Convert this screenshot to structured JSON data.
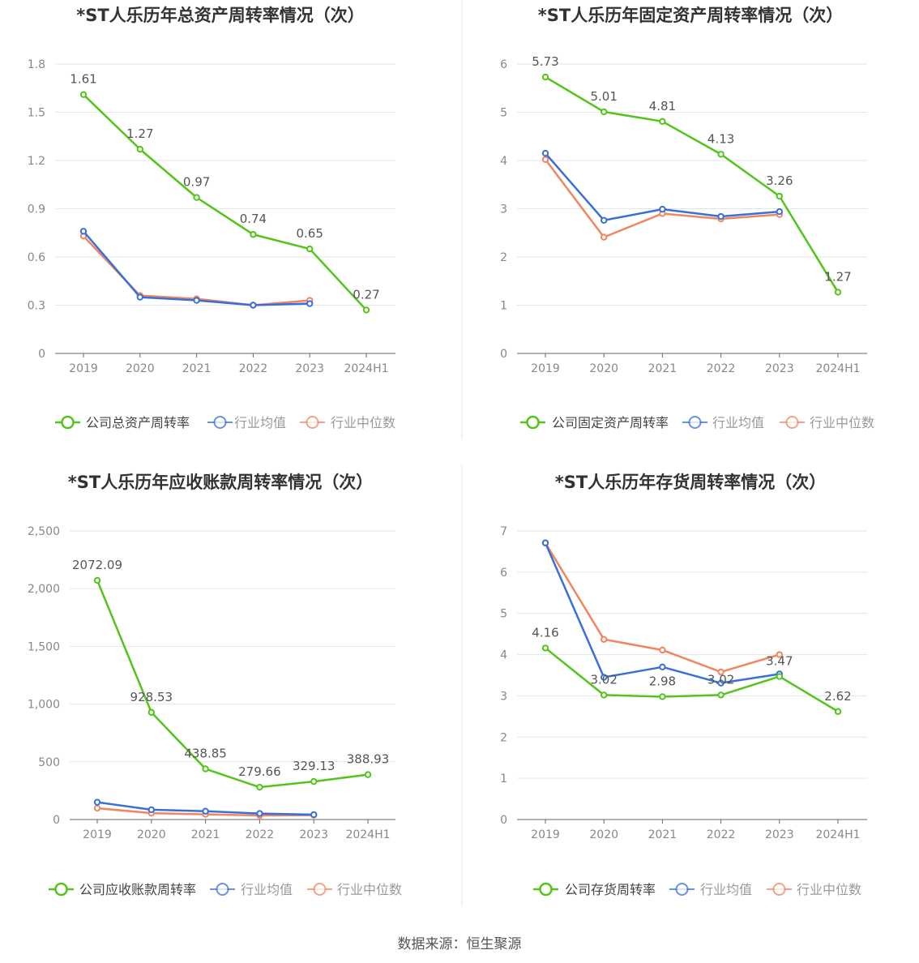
{
  "footer": {
    "source": "数据来源：恒生聚源"
  },
  "legend_labels": {
    "industry_avg": "行业均值",
    "industry_median": "行业中位数"
  },
  "colors": {
    "company": "#52c41a",
    "industry_avg": "#3a6fd8",
    "industry_median": "#f08660",
    "axis": "#888888",
    "grid": "#e4e6ee",
    "label": "#555555"
  },
  "chart_data": [
    {
      "type": "line",
      "title": "*ST人乐历年总资产周转率情况（次）",
      "categories": [
        "2019",
        "2020",
        "2021",
        "2022",
        "2023",
        "2024H1"
      ],
      "ylim": [
        0,
        1.8
      ],
      "yticks": [
        0,
        0.3,
        0.6,
        0.9,
        1.2,
        1.5,
        1.8
      ],
      "yticklabels": [
        "0",
        "0.3",
        "0.6",
        "0.9",
        "1.2",
        "1.5",
        "1.8"
      ],
      "series": [
        {
          "key": "company",
          "name": "公司总资产周转率",
          "values": [
            1.61,
            1.27,
            0.97,
            0.74,
            0.65,
            0.27
          ],
          "labels": [
            "1.61",
            "1.27",
            "0.97",
            "0.74",
            "0.65",
            "0.27"
          ]
        },
        {
          "key": "industry_avg",
          "name": "行业均值",
          "values": [
            0.76,
            0.35,
            0.33,
            0.3,
            0.31,
            null
          ]
        },
        {
          "key": "industry_median",
          "name": "行业中位数",
          "values": [
            0.73,
            0.36,
            0.34,
            0.3,
            0.33,
            null
          ]
        }
      ]
    },
    {
      "type": "line",
      "title": "*ST人乐历年固定资产周转率情况（次）",
      "categories": [
        "2019",
        "2020",
        "2021",
        "2022",
        "2023",
        "2024H1"
      ],
      "ylim": [
        0,
        6
      ],
      "yticks": [
        0,
        1,
        2,
        3,
        4,
        5,
        6
      ],
      "yticklabels": [
        "0",
        "1",
        "2",
        "3",
        "4",
        "5",
        "6"
      ],
      "series": [
        {
          "key": "company",
          "name": "公司固定资产周转率",
          "values": [
            5.73,
            5.01,
            4.81,
            4.13,
            3.26,
            1.27
          ],
          "labels": [
            "5.73",
            "5.01",
            "4.81",
            "4.13",
            "3.26",
            "1.27"
          ]
        },
        {
          "key": "industry_avg",
          "name": "行业均值",
          "values": [
            4.15,
            2.76,
            2.99,
            2.84,
            2.94,
            null
          ]
        },
        {
          "key": "industry_median",
          "name": "行业中位数",
          "values": [
            4.02,
            2.41,
            2.9,
            2.79,
            2.88,
            null
          ]
        }
      ]
    },
    {
      "type": "line",
      "title": "*ST人乐历年应收账款周转率情况（次）",
      "categories": [
        "2019",
        "2020",
        "2021",
        "2022",
        "2023",
        "2024H1"
      ],
      "ylim": [
        0,
        2500
      ],
      "yticks": [
        0,
        500,
        1000,
        1500,
        2000,
        2500
      ],
      "yticklabels": [
        "0",
        "500",
        "1,000",
        "1,500",
        "2,000",
        "2,500"
      ],
      "series": [
        {
          "key": "company",
          "name": "公司应收账款周转率",
          "values": [
            2072.09,
            928.53,
            438.85,
            279.66,
            329.13,
            388.93
          ],
          "labels": [
            "2072.09",
            "928.53",
            "438.85",
            "279.66",
            "329.13",
            "388.93"
          ]
        },
        {
          "key": "industry_avg",
          "name": "行业均值",
          "values": [
            150,
            85,
            72,
            52,
            42,
            null
          ]
        },
        {
          "key": "industry_median",
          "name": "行业中位数",
          "values": [
            98,
            55,
            45,
            35,
            38,
            null
          ]
        }
      ]
    },
    {
      "type": "line",
      "title": "*ST人乐历年存货周转率情况（次）",
      "categories": [
        "2019",
        "2020",
        "2021",
        "2022",
        "2023",
        "2024H1"
      ],
      "ylim": [
        0,
        7
      ],
      "yticks": [
        0,
        1,
        2,
        3,
        4,
        5,
        6,
        7
      ],
      "yticklabels": [
        "0",
        "1",
        "2",
        "3",
        "4",
        "5",
        "6",
        "7"
      ],
      "series": [
        {
          "key": "company",
          "name": "公司存货周转率",
          "values": [
            4.16,
            3.02,
            2.98,
            3.02,
            3.47,
            2.62
          ],
          "labels": [
            "4.16",
            "3.02",
            "2.98",
            "3.02",
            "3.47",
            "2.62"
          ]
        },
        {
          "key": "industry_avg",
          "name": "行业均值",
          "values": [
            6.71,
            3.45,
            3.7,
            3.31,
            3.53,
            null
          ]
        },
        {
          "key": "industry_median",
          "name": "行业中位数",
          "values": [
            6.71,
            4.37,
            4.11,
            3.58,
            4.0,
            null
          ]
        }
      ]
    }
  ]
}
